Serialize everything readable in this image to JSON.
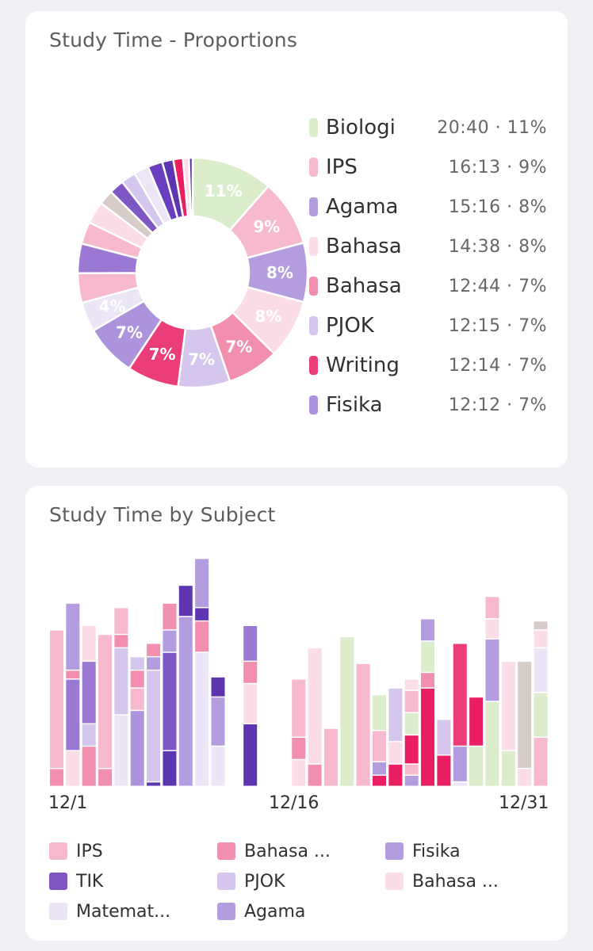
{
  "chart_data": [
    {
      "type": "pie",
      "title": "Study Time - Proportions",
      "donut": true,
      "slices": [
        {
          "name": "Biologi",
          "value": 11,
          "label": "11%",
          "color": "#dcedcc"
        },
        {
          "name": "IPS",
          "value": 9,
          "label": "9%",
          "color": "#f7b9ce"
        },
        {
          "name": "Agama",
          "value": 8,
          "label": "8%",
          "color": "#b39ddf"
        },
        {
          "name": "Bahasa",
          "value": 8,
          "label": "8%",
          "color": "#fbdde7"
        },
        {
          "name": "Bahasa",
          "value": 7,
          "label": "7%",
          "color": "#f28eae"
        },
        {
          "name": "PJOK",
          "value": 7,
          "label": "7%",
          "color": "#d4c6ec"
        },
        {
          "name": "Writing",
          "value": 7,
          "label": "7%",
          "color": "#ea3d7a"
        },
        {
          "name": "Fisika",
          "value": 7,
          "label": "7%",
          "color": "#ad93dc"
        },
        {
          "name": "",
          "value": 4,
          "label": "4%",
          "color": "#ebe5f5"
        },
        {
          "name": "",
          "value": 4,
          "label": "",
          "color": "#f7b9ce"
        },
        {
          "name": "",
          "value": 4,
          "label": "",
          "color": "#9b78d4"
        },
        {
          "name": "",
          "value": 3,
          "label": "",
          "color": "#f7b9ce"
        },
        {
          "name": "",
          "value": 3,
          "label": "",
          "color": "#fbdde7"
        },
        {
          "name": "",
          "value": 2,
          "label": "",
          "color": "#d7ccc8"
        },
        {
          "name": "",
          "value": 2,
          "label": "",
          "color": "#7e57c2"
        },
        {
          "name": "",
          "value": 2,
          "label": "",
          "color": "#d4c6ec"
        },
        {
          "name": "",
          "value": 2,
          "label": "",
          "color": "#ebe5f5"
        },
        {
          "name": "",
          "value": 2,
          "label": "",
          "color": "#6a3fbf"
        },
        {
          "name": "",
          "value": 1.5,
          "label": "",
          "color": "#5e35b1"
        },
        {
          "name": "",
          "value": 1.3,
          "label": "",
          "color": "#e91e63"
        },
        {
          "name": "",
          "value": 0.8,
          "label": "",
          "color": "#fbdde7"
        },
        {
          "name": "",
          "value": 0.5,
          "label": "",
          "color": "#512da8"
        }
      ],
      "legend": [
        {
          "name": "Biologi",
          "value": "20:40 · 11%",
          "color": "#dcedcc"
        },
        {
          "name": "IPS",
          "value": "16:13 · 9%",
          "color": "#f7b9ce"
        },
        {
          "name": "Agama",
          "value": "15:16 · 8%",
          "color": "#b39ddf"
        },
        {
          "name": "Bahasa",
          "value": "14:38 · 8%",
          "color": "#fbdde7"
        },
        {
          "name": "Bahasa",
          "value": "12:44 · 7%",
          "color": "#f28eae"
        },
        {
          "name": "PJOK",
          "value": "12:15 · 7%",
          "color": "#d4c6ec"
        },
        {
          "name": "Writing",
          "value": "12:14 · 7%",
          "color": "#ea3d7a"
        },
        {
          "name": "Fisika",
          "value": "12:12 · 7%",
          "color": "#ad93dc"
        }
      ]
    },
    {
      "type": "bar",
      "stacked": true,
      "title": "Study Time by Subject",
      "x_ticks": [
        "12/1",
        "12/16",
        "12/31"
      ],
      "categories": [
        "12/1",
        "12/2",
        "12/3",
        "12/4",
        "12/5",
        "12/6",
        "12/7",
        "12/8",
        "12/9",
        "12/10",
        "12/11",
        "12/12",
        "12/13",
        "12/14",
        "12/15",
        "12/16",
        "12/17",
        "12/18",
        "12/19",
        "12/20",
        "12/21",
        "12/22",
        "12/23",
        "12/24",
        "12/25",
        "12/26",
        "12/27",
        "12/28",
        "12/29",
        "12/30",
        "12/31"
      ],
      "ymax": 100,
      "days": [
        [
          [
            8,
            "#f28eae"
          ],
          [
            62,
            "#f7b9ce"
          ]
        ],
        [
          [
            16,
            "#fbdde7"
          ],
          [
            32,
            "#9b78d4"
          ],
          [
            4,
            "#f28eae"
          ],
          [
            30,
            "#b39ddf"
          ]
        ],
        [
          [
            18,
            "#f28eae"
          ],
          [
            10,
            "#d4c6ec"
          ],
          [
            28,
            "#9b78d4"
          ],
          [
            16,
            "#fbdde7"
          ]
        ],
        [
          [
            8,
            "#f28eae"
          ],
          [
            60,
            "#f7b9ce"
          ]
        ],
        [
          [
            32,
            "#ebe5f5"
          ],
          [
            30,
            "#d4c6ec"
          ],
          [
            6,
            "#f28eae"
          ],
          [
            12,
            "#f7b9ce"
          ]
        ],
        [
          [
            34,
            "#ad93dc"
          ],
          [
            10,
            "#f7b9ce"
          ],
          [
            8,
            "#f28eae"
          ],
          [
            6,
            "#d4c6ec"
          ]
        ],
        [
          [
            2,
            "#5e35b1"
          ],
          [
            50,
            "#d4c6ec"
          ],
          [
            6,
            "#b39ddf"
          ],
          [
            6,
            "#f28eae"
          ]
        ],
        [
          [
            16,
            "#5e35b1"
          ],
          [
            44,
            "#7e57c2"
          ],
          [
            10,
            "#b39ddf"
          ],
          [
            12,
            "#f28eae"
          ]
        ],
        [
          [
            76,
            "#b39ddf"
          ],
          [
            14,
            "#5e35b1"
          ]
        ],
        [
          [
            60,
            "#ebe5f5"
          ],
          [
            14,
            "#f28eae"
          ],
          [
            6,
            "#5e35b1"
          ],
          [
            22,
            "#b39ddf"
          ]
        ],
        [
          [
            18,
            "#ebe5f5"
          ],
          [
            22,
            "#b39ddf"
          ],
          [
            9,
            "#5e35b1"
          ]
        ],
        [],
        [
          [
            28,
            "#5e35b1"
          ],
          [
            18,
            "#fbdde7"
          ],
          [
            10,
            "#f28eae"
          ],
          [
            16,
            "#9b78d4"
          ]
        ],
        [],
        [],
        [
          [
            12,
            "#fbdde7"
          ],
          [
            10,
            "#f28eae"
          ],
          [
            26,
            "#f7b9ce"
          ]
        ],
        [
          [
            10,
            "#f28eae"
          ],
          [
            52,
            "#fbdde7"
          ]
        ],
        [
          [
            26,
            "#f7b9ce"
          ]
        ],
        [
          [
            67,
            "#dcedcc"
          ]
        ],
        [
          [
            55,
            "#f7b9ce"
          ]
        ],
        [
          [
            5,
            "#e91e63"
          ],
          [
            6,
            "#b39ddf"
          ],
          [
            14,
            "#f7b9ce"
          ],
          [
            16,
            "#dcedcc"
          ]
        ],
        [
          [
            10,
            "#e91e63"
          ],
          [
            10,
            "#fbdde7"
          ],
          [
            24,
            "#d4c6ec"
          ]
        ],
        [
          [
            5,
            "#b39ddf"
          ],
          [
            5,
            "#f7b9ce"
          ],
          [
            13,
            "#e91e63"
          ],
          [
            10,
            "#dcedcc"
          ],
          [
            10,
            "#f7b9ce"
          ],
          [
            5,
            "#fbdde7"
          ]
        ],
        [
          [
            44,
            "#e91e63"
          ],
          [
            7,
            "#f28eae"
          ],
          [
            14,
            "#dcedcc"
          ],
          [
            10,
            "#b39ddf"
          ]
        ],
        [
          [
            14,
            "#e91e63"
          ],
          [
            16,
            "#d4c6ec"
          ]
        ],
        [
          [
            2,
            "#ebe5f5"
          ],
          [
            16,
            "#b39ddf"
          ],
          [
            46,
            "#ea3d7a"
          ]
        ],
        [
          [
            18,
            "#dcedcc"
          ],
          [
            22,
            "#e91e63"
          ]
        ],
        [
          [
            38,
            "#dcedcc"
          ],
          [
            28,
            "#b39ddf"
          ],
          [
            9,
            "#fbdde7"
          ],
          [
            10,
            "#f7b9ce"
          ]
        ],
        [
          [
            16,
            "#dcedcc"
          ],
          [
            40,
            "#fbdde7"
          ]
        ],
        [
          [
            8,
            "#fbdde7"
          ],
          [
            48,
            "#d7ccc8"
          ]
        ],
        [
          [
            22,
            "#f7b9ce"
          ],
          [
            20,
            "#dcedcc"
          ],
          [
            20,
            "#ebe5f5"
          ],
          [
            8,
            "#fbdde7"
          ],
          [
            4,
            "#d7ccc8"
          ]
        ]
      ],
      "legend": [
        {
          "name": "IPS",
          "color": "#f7b9ce"
        },
        {
          "name": "Bahasa ...",
          "color": "#f28eae"
        },
        {
          "name": "Fisika",
          "color": "#b39ddf"
        },
        {
          "name": "TIK",
          "color": "#7e57c2"
        },
        {
          "name": "PJOK",
          "color": "#d4c6ec"
        },
        {
          "name": "Bahasa ...",
          "color": "#fbdde7"
        },
        {
          "name": "Matemat...",
          "color": "#ebe5f5"
        },
        {
          "name": "Agama",
          "color": "#b39ddf"
        }
      ]
    }
  ]
}
